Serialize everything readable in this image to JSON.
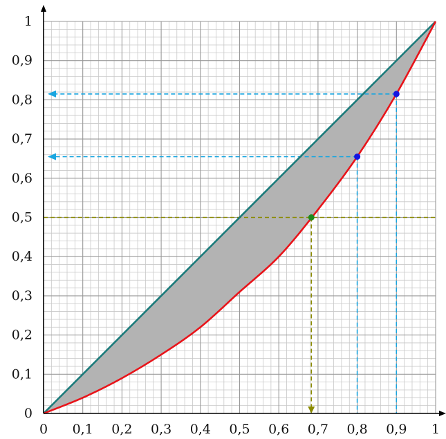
{
  "chart_data": {
    "type": "line",
    "title": "",
    "xlabel": "",
    "ylabel": "",
    "xlim": [
      0,
      1
    ],
    "ylim": [
      0,
      1
    ],
    "grid": true,
    "x_ticks": [
      "0",
      "0,1",
      "0,2",
      "0,3",
      "0,4",
      "0,5",
      "0,6",
      "0,7",
      "0,8",
      "0,9",
      "1"
    ],
    "y_ticks": [
      "0",
      "0,1",
      "0,2",
      "0,3",
      "0,4",
      "0,5",
      "0,6",
      "0,7",
      "0,8",
      "0,9",
      "1"
    ],
    "series": [
      {
        "color": "#1a7a7a",
        "x": [
          0,
          1
        ],
        "y": [
          0,
          1
        ]
      },
      {
        "color": "#e8141a",
        "x": [
          0,
          0.1,
          0.2,
          0.3,
          0.4,
          0.5,
          0.6,
          0.7,
          0.8,
          0.9,
          1
        ],
        "y": [
          0,
          0.04,
          0.09,
          0.15,
          0.22,
          0.31,
          0.4,
          0.52,
          0.655,
          0.815,
          1
        ]
      }
    ],
    "shaded_region": {
      "between": [
        "line",
        "curve"
      ],
      "color": "#b3b3b3"
    },
    "highlight_points": [
      {
        "x": 0.683,
        "y": 0.5,
        "color": "#1e8a1e",
        "guide_color": "#8a8a00",
        "arrow": "down",
        "horizontal_guide": "full"
      },
      {
        "x": 0.8,
        "y": 0.655,
        "color": "#1515e0",
        "guide_color": "#1aa6e0",
        "arrow": "left"
      },
      {
        "x": 0.9,
        "y": 0.815,
        "color": "#1515e0",
        "guide_color": "#1aa6e0",
        "arrow": "left"
      }
    ]
  }
}
